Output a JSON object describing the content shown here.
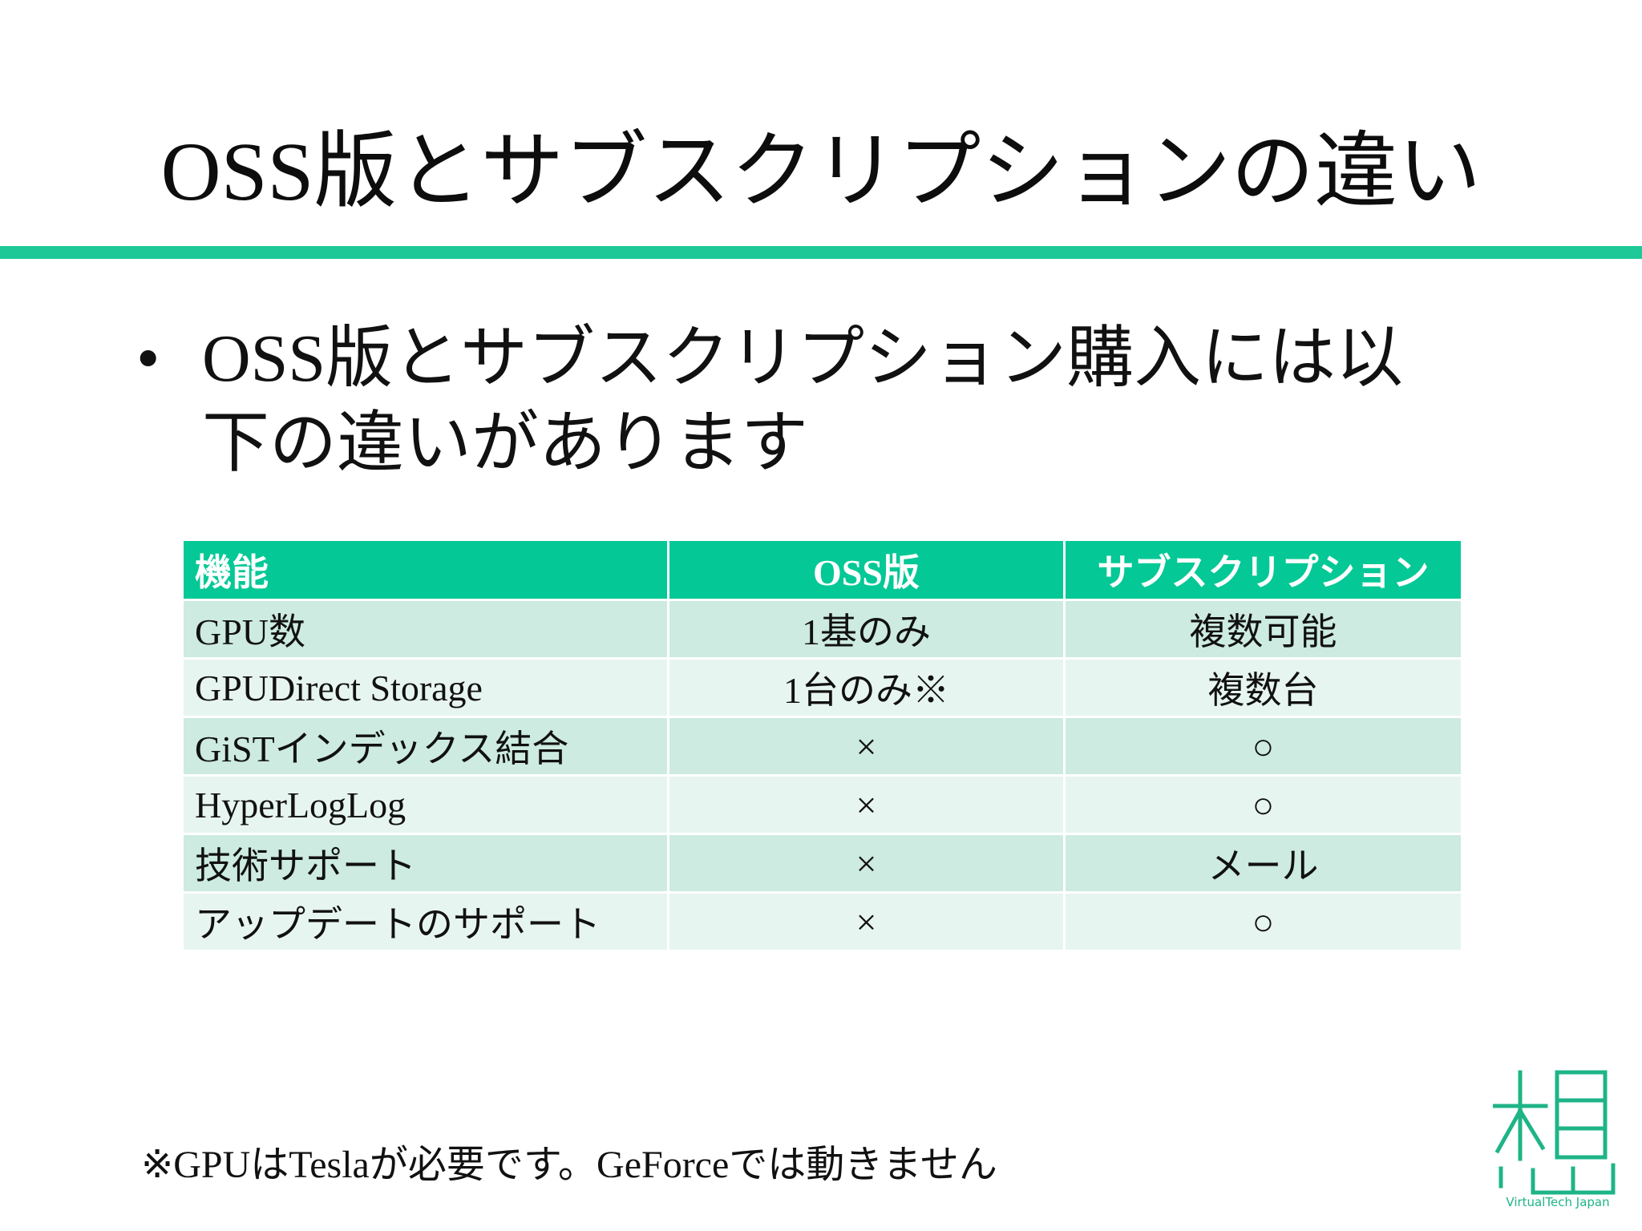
{
  "slide": {
    "title": "OSS版とサブスクリプションの違い",
    "bullet_marker": "•",
    "bullet_text": "OSS版とサブスクリプション購入には以下の違いがあります",
    "footnote": "※GPUはTeslaが必要です。GeForceでは動きません"
  },
  "table": {
    "headers": {
      "feature": "機能",
      "oss": "OSS版",
      "subscription": "サブスクリプション"
    },
    "rows": [
      {
        "feature": "GPU数",
        "oss": "1基のみ",
        "subscription": "複数可能"
      },
      {
        "feature": "GPUDirect Storage",
        "oss": "1台のみ※",
        "subscription": "複数台"
      },
      {
        "feature": "GiSTインデックス結合",
        "oss": "×",
        "subscription": "○"
      },
      {
        "feature": "HyperLogLog",
        "oss": "×",
        "subscription": "○"
      },
      {
        "feature": "技術サポート",
        "oss": "×",
        "subscription": "メール"
      },
      {
        "feature": "アップデートのサポート",
        "oss": "×",
        "subscription": "○"
      }
    ]
  },
  "logo": {
    "icon": "kanji-logo-icon",
    "text": "VirtualTech Japan"
  },
  "colors": {
    "accent": "#1ec997",
    "header_bg": "#04c896",
    "row_odd": "#cdebe0",
    "row_even": "#e7f5f0"
  }
}
